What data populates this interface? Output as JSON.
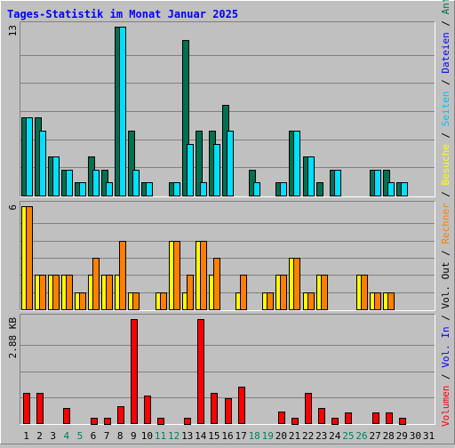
{
  "chart_data": {
    "type": "bar",
    "title": "Tages-Statistik im Monat Januar 2025",
    "categories": [
      "1",
      "2",
      "3",
      "4",
      "5",
      "6",
      "7",
      "8",
      "9",
      "10",
      "11",
      "12",
      "13",
      "14",
      "15",
      "16",
      "17",
      "18",
      "19",
      "20",
      "21",
      "22",
      "23",
      "24",
      "25",
      "26",
      "27",
      "28",
      "29",
      "30",
      "31"
    ],
    "weekend_days": [
      "4",
      "5",
      "11",
      "12",
      "18",
      "19",
      "25",
      "26"
    ],
    "panels": [
      {
        "id": "top",
        "max_label": "13",
        "ymax": 13,
        "series": [
          {
            "name": "Anfragen",
            "color": "#007050",
            "values": [
              6,
              6,
              3,
              2,
              1,
              3,
              2,
              13,
              5,
              1,
              0,
              1,
              12,
              5,
              5,
              7,
              0,
              2,
              0,
              1,
              5,
              3,
              1,
              2,
              0,
              0,
              2,
              2,
              1,
              0,
              0
            ]
          },
          {
            "name": "Dateien",
            "color": "#00e0ff",
            "values": [
              6,
              5,
              3,
              2,
              1,
              2,
              1,
              13,
              2,
              1,
              0,
              1,
              4,
              1,
              4,
              5,
              0,
              1,
              0,
              1,
              5,
              3,
              0,
              2,
              0,
              0,
              2,
              1,
              1,
              0,
              0
            ]
          },
          {
            "name": "Seiten",
            "color": "#00e0ff",
            "values": []
          }
        ]
      },
      {
        "id": "middle",
        "max_label": "6",
        "ymax": 6,
        "series": [
          {
            "name": "Besuche",
            "color": "#ffff00",
            "values": [
              6,
              2,
              2,
              2,
              1,
              2,
              2,
              2,
              1,
              0,
              1,
              4,
              1,
              4,
              2,
              0,
              1,
              0,
              1,
              2,
              3,
              1,
              2,
              0,
              0,
              2,
              1,
              1,
              0,
              0,
              0
            ]
          },
          {
            "name": "Rechner",
            "color": "#ff8000",
            "values": [
              6,
              2,
              2,
              2,
              1,
              3,
              2,
              4,
              1,
              0,
              1,
              4,
              2,
              4,
              3,
              0,
              2,
              0,
              1,
              2,
              3,
              1,
              2,
              0,
              0,
              2,
              1,
              1,
              0,
              0,
              0
            ]
          }
        ]
      },
      {
        "id": "bottom",
        "max_label": "2.88 KB",
        "ymax": 2.88,
        "series": [
          {
            "name": "Volumen",
            "color": "#ff0000",
            "values": [
              0.84,
              0.84,
              0,
              0.43,
              0,
              0.16,
              0.16,
              0.47,
              2.88,
              0.77,
              0.16,
              0,
              0.16,
              2.88,
              0.84,
              0.7,
              1.0,
              0,
              0,
              0.31,
              0.16,
              0.84,
              0.41,
              0.16,
              0.29,
              0,
              0.29,
              0.29,
              0.16,
              0,
              0
            ]
          }
        ]
      }
    ],
    "legend_right": [
      {
        "text": "Anfragen",
        "color": "#007050"
      },
      {
        "text": "Dateien",
        "color": "#0000ff"
      },
      {
        "text": "Seiten",
        "color": "#00c0ff"
      },
      {
        "text": "Besuche",
        "color": "#ffff00"
      },
      {
        "text": "Rechner",
        "color": "#ff8000"
      },
      {
        "text": "Vol. Out",
        "color": "#000000"
      },
      {
        "text": "Vol. In",
        "color": "#0000ff"
      },
      {
        "text": "Volumen",
        "color": "#ff0000"
      }
    ],
    "legend_separator": " / ",
    "colors": {
      "background": "#c0c0c0",
      "title": "#0000ff",
      "gridline": "#808080",
      "weekend_label": "#00805f"
    }
  }
}
